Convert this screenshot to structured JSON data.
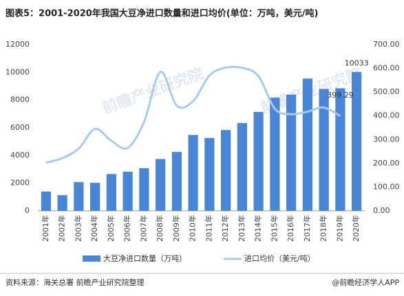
{
  "chart_data": {
    "type": "bar_line",
    "title": "图表5：2001-2020年我国大豆净进口数量和进口均价(单位：万吨，美元/吨)",
    "categories": [
      "2001年",
      "2002年",
      "2003年",
      "2004年",
      "2005年",
      "2006年",
      "2007年",
      "2008年",
      "2009年",
      "2010年",
      "2011年",
      "2012年",
      "2013年",
      "2014年",
      "2015年",
      "2016年",
      "2017年",
      "2018年",
      "2019年",
      "2020年"
    ],
    "series": [
      {
        "name": "大豆净进口数量（万吨）",
        "color": "#4a86d8",
        "type": "bar",
        "values": [
          1394,
          1131,
          2074,
          2023,
          2659,
          2827,
          3082,
          3744,
          4255,
          5480,
          5264,
          5838,
          6338,
          7140,
          8169,
          8391,
          9553,
          8803,
          8851,
          10033
        ],
        "value_labels": [
          null,
          null,
          null,
          null,
          null,
          null,
          null,
          null,
          null,
          null,
          null,
          null,
          null,
          null,
          null,
          null,
          null,
          null,
          null,
          "10033"
        ]
      },
      {
        "name": "进口均价（美元/吨）",
        "color": "#a9c9ef",
        "type": "line",
        "axis": "y2",
        "values": [
          203,
          222,
          262,
          345,
          295,
          265,
          375,
          585,
          443,
          462,
          570,
          603,
          602,
          567,
          430,
          407,
          418,
          435,
          399.29,
          null
        ],
        "value_labels": [
          null,
          null,
          null,
          null,
          null,
          null,
          null,
          null,
          null,
          null,
          null,
          null,
          null,
          null,
          null,
          null,
          null,
          null,
          "399.29",
          null
        ]
      }
    ],
    "ylim": [
      0,
      12000
    ],
    "yticks": [
      0,
      2000,
      4000,
      6000,
      8000,
      10000,
      12000
    ],
    "y2lim": [
      0,
      700
    ],
    "y2ticks": [
      {
        "value": 0,
        "label": "0.00"
      },
      {
        "value": 100,
        "label": "100.00"
      },
      {
        "value": 200,
        "label": "200.00"
      },
      {
        "value": 300,
        "label": "300.00"
      },
      {
        "value": 400,
        "label": "400.00"
      },
      {
        "value": 500,
        "label": "500.00"
      },
      {
        "value": 600,
        "label": "600.00"
      },
      {
        "value": 700,
        "label": "700.00"
      }
    ],
    "watermark": "前瞻产业研究院",
    "source": "资料来源：海关总署 前瞻产业研究院整理",
    "credit": "@前瞻经济学人APP"
  }
}
